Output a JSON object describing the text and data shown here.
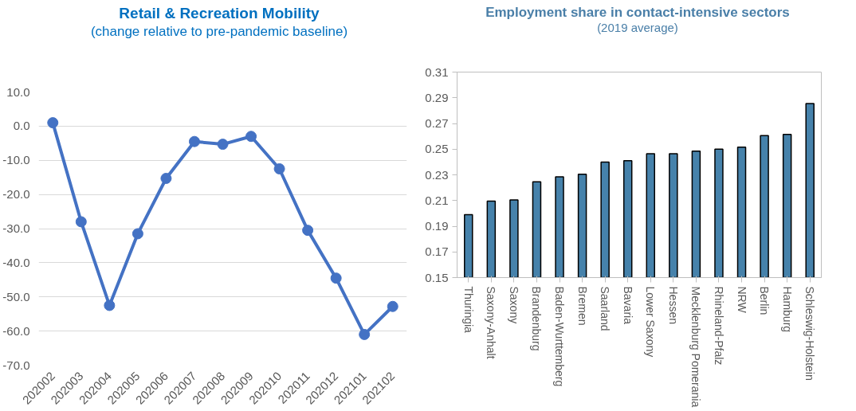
{
  "chart_data": [
    {
      "type": "line",
      "title": "Retail & Recreation Mobility",
      "subtitle": "(change relative to pre-pandemic baseline)",
      "categories": [
        "202002",
        "202003",
        "202004",
        "202005",
        "202006",
        "202007",
        "202008",
        "202009",
        "202010",
        "202011",
        "202012",
        "202101",
        "202102"
      ],
      "series": [
        {
          "color": "#4472c4",
          "values": [
            1,
            -28,
            -52.5,
            -31.5,
            -15.3,
            -4.5,
            -5.3,
            -3,
            -12.5,
            -30.5,
            -44.5,
            -61,
            -52.8
          ]
        }
      ],
      "ylim": [
        -70,
        10
      ],
      "yticks": [
        {
          "value": -70,
          "label": "-70.0"
        },
        {
          "value": -60,
          "label": "-60.0"
        },
        {
          "value": -50,
          "label": "-50.0"
        },
        {
          "value": -40,
          "label": "-40.0"
        },
        {
          "value": -30,
          "label": "-30.0"
        },
        {
          "value": -20,
          "label": "-20.0"
        },
        {
          "value": -10,
          "label": "-10.0"
        },
        {
          "value": 0,
          "label": "0.0"
        },
        {
          "value": 10,
          "label": "10.0"
        }
      ],
      "grid": "y",
      "marker": "circle",
      "line_style": "solid"
    },
    {
      "type": "bar",
      "title": "Employment share in contact-intensive sectors",
      "subtitle": "(2019 average)",
      "categories": [
        "Thuringia",
        "Saxony-Anhalt",
        "Saxony",
        "Brandenburg",
        "Baden-Wurttemberg",
        "Bremen",
        "Saarland",
        "Bavaria",
        "Lower Saxony",
        "Hessen",
        "Mecklenburg Pomerania",
        "Rhineland-Pfalz",
        "NRW",
        "Berlin",
        "Hamburg",
        "Schleswig-Holstein"
      ],
      "series": [
        {
          "color": "#4682ab",
          "values": [
            0.199,
            0.2095,
            0.2105,
            0.2245,
            0.2285,
            0.2305,
            0.24,
            0.241,
            0.2465,
            0.2465,
            0.2485,
            0.25,
            0.2515,
            0.2605,
            0.2615,
            0.2855
          ]
        }
      ],
      "ylim": [
        0.15,
        0.31
      ],
      "yticks": [
        0.15,
        0.17,
        0.19,
        0.21,
        0.23,
        0.25,
        0.27,
        0.29,
        0.31
      ],
      "grid": false
    }
  ]
}
